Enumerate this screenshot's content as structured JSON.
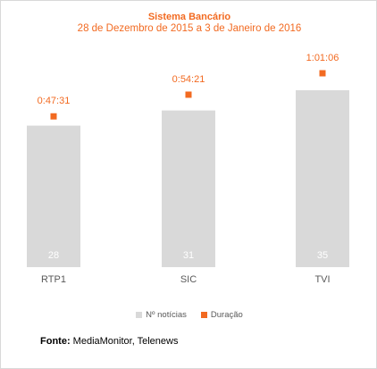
{
  "colors": {
    "bar": "#d9d9d9",
    "marker": "#f26a21",
    "title": "#f26a21",
    "axis_label": "#595959",
    "bar_label": "#ffffff"
  },
  "legend_items": [
    {
      "label": "Nº notícias",
      "color": "#d9d9d9"
    },
    {
      "label": "Duração",
      "color": "#f26a21"
    }
  ],
  "source": {
    "label": "Fonte:",
    "text": "MediaMonitor, Telenews"
  },
  "chart_data": {
    "type": "bar",
    "title": "Sistema Bancário",
    "subtitle": "28 de Dezembro de 2015 a 3 de Janeiro de 2016",
    "categories": [
      "RTP1",
      "SIC",
      "TVI"
    ],
    "series": [
      {
        "name": "Nº notícias",
        "type": "bar",
        "values": [
          28,
          31,
          35
        ],
        "labels": [
          "28",
          "31",
          "35"
        ]
      },
      {
        "name": "Duração",
        "type": "scatter",
        "values_seconds": [
          2851,
          3261,
          3666
        ],
        "labels": [
          "0:47:31",
          "0:54:21",
          "1:01:06"
        ]
      }
    ],
    "ylim_bars": [
      0,
      40
    ],
    "ylim_duration_seconds": [
      0,
      4400
    ],
    "grid": false,
    "legend": "bottom"
  }
}
